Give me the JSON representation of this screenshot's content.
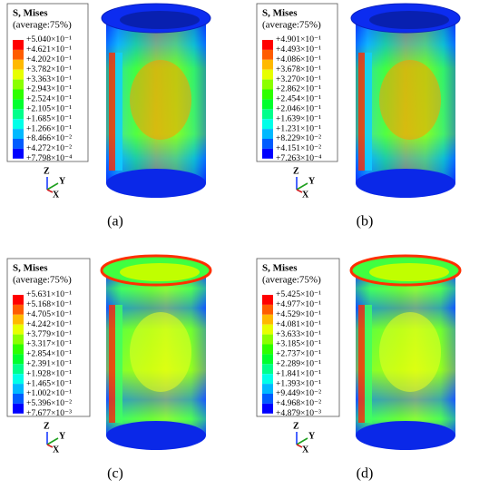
{
  "scale_colors": [
    "#ff0000",
    "#ff5c00",
    "#ffb900",
    "#e7ff00",
    "#8bff00",
    "#2eff00",
    "#00ff2e",
    "#00ff8b",
    "#00ffe8",
    "#00b9ff",
    "#005cff",
    "#0000ff"
  ],
  "panels": [
    {
      "title": "S, Mises",
      "subtitle": "(average:75%)",
      "caption": "(a)",
      "axes": {
        "z": "Z",
        "y": "Y",
        "x": "X"
      },
      "labels": [
        "+5.040×10⁻¹",
        "+4.621×10⁻¹",
        "+4.202×10⁻¹",
        "+3.782×10⁻¹",
        "+3.363×10⁻¹",
        "+2.943×10⁻¹",
        "+2.524×10⁻¹",
        "+2.105×10⁻¹",
        "+1.685×10⁻¹",
        "+1.266×10⁻¹",
        "+8.466×10⁻²",
        "+4.272×10⁻²",
        "+7.798×10⁻⁴"
      ]
    },
    {
      "title": "S, Mises",
      "subtitle": "(average:75%)",
      "caption": "(b)",
      "axes": {
        "z": "Z",
        "y": "Y",
        "x": "X"
      },
      "labels": [
        "+4.901×10⁻¹",
        "+4.493×10⁻¹",
        "+4.086×10⁻¹",
        "+3.678×10⁻¹",
        "+3.270×10⁻¹",
        "+2.862×10⁻¹",
        "+2.454×10⁻¹",
        "+2.046×10⁻¹",
        "+1.639×10⁻¹",
        "+1.231×10⁻¹",
        "+8.229×10⁻²",
        "+4.151×10⁻²",
        "+7.263×10⁻⁴"
      ]
    },
    {
      "title": "S, Mises",
      "subtitle": "(average:75%)",
      "caption": "(c)",
      "axes": {
        "z": "Z",
        "y": "Y",
        "x": "X"
      },
      "labels": [
        "+5.631×10⁻¹",
        "+5.168×10⁻¹",
        "+4.705×10⁻¹",
        "+4.242×10⁻¹",
        "+3.779×10⁻¹",
        "+3.317×10⁻¹",
        "+2.854×10⁻¹",
        "+2.391×10⁻¹",
        "+1.928×10⁻¹",
        "+1.465×10⁻¹",
        "+1.002×10⁻¹",
        "+5.396×10⁻²",
        "+7.677×10⁻³"
      ]
    },
    {
      "title": "S, Mises",
      "subtitle": "(average:75%)",
      "caption": "(d)",
      "axes": {
        "z": "Z",
        "y": "Y",
        "x": "X"
      },
      "labels": [
        "+5.425×10⁻¹",
        "+4.977×10⁻¹",
        "+4.529×10⁻¹",
        "+4.081×10⁻¹",
        "+3.633×10⁻¹",
        "+3.185×10⁻¹",
        "+2.737×10⁻¹",
        "+2.289×10⁻¹",
        "+1.841×10⁻¹",
        "+1.393×10⁻¹",
        "+9.449×10⁻²",
        "+4.968×10⁻²",
        "+4.879×10⁻³"
      ]
    }
  ]
}
